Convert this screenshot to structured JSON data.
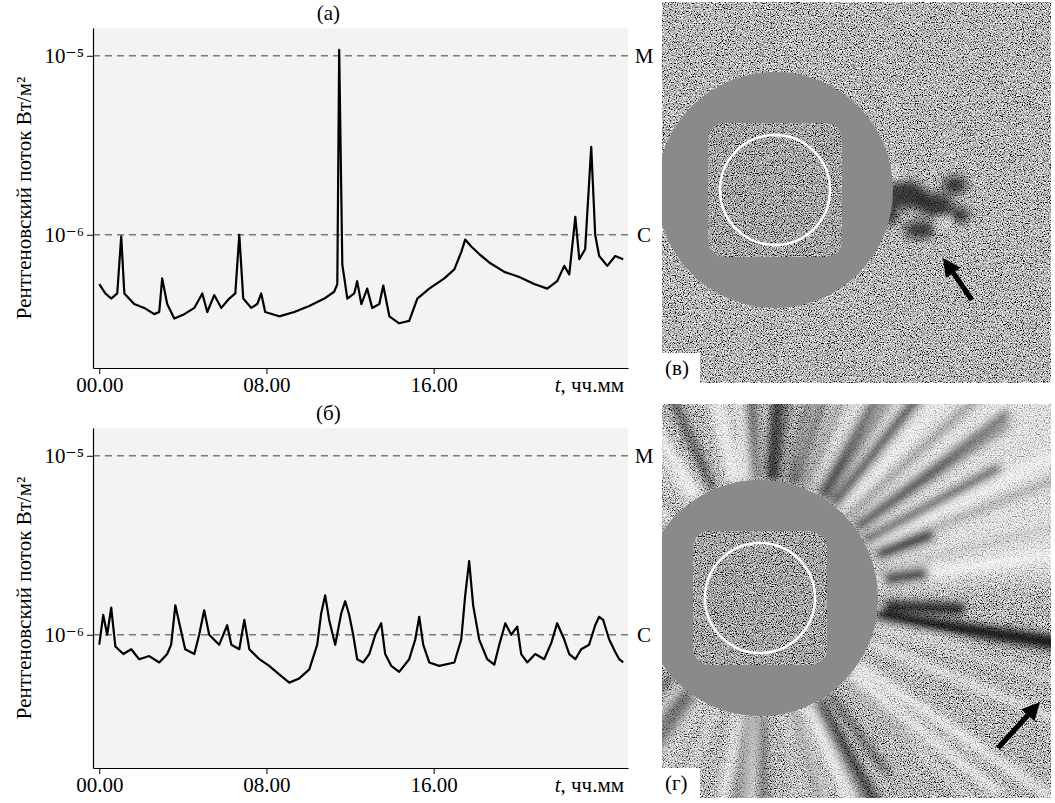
{
  "chart_data": [
    {
      "type": "line",
      "title": "(а)",
      "x_label": "t, чч.мм",
      "y_label": "Рентгеновский поток Вт/м²",
      "color": "#000000",
      "log": "y",
      "xlim": [
        -0.3,
        25.3
      ],
      "xticks": [
        {
          "value": 0,
          "label": "00.00"
        },
        {
          "value": 8,
          "label": "08.00"
        },
        {
          "value": 16,
          "label": "16.00"
        }
      ],
      "ylim": [
        1.8e-07,
        1.43e-05
      ],
      "yticks": [
        {
          "value": 1e-05,
          "label": "10⁻⁵"
        },
        {
          "value": 1e-06,
          "label": "10⁻⁶"
        }
      ],
      "annotations": [
        {
          "text": "M",
          "y": 1e-05,
          "line_style": "dashed"
        },
        {
          "text": "C",
          "y": 1e-06,
          "line_style": "dashed"
        }
      ],
      "x": [
        0.0,
        0.29,
        0.57,
        0.86,
        1.05,
        1.2,
        1.67,
        2.15,
        2.63,
        2.87,
        3.01,
        3.25,
        3.59,
        4.07,
        4.55,
        4.93,
        5.17,
        5.5,
        5.84,
        6.22,
        6.51,
        6.7,
        6.89,
        7.27,
        7.56,
        7.75,
        7.94,
        8.61,
        9.33,
        10.05,
        10.77,
        11.24,
        11.39,
        11.48,
        11.63,
        11.87,
        12.2,
        12.34,
        12.54,
        12.82,
        13.06,
        13.4,
        13.59,
        13.88,
        14.35,
        14.83,
        15.22,
        15.79,
        16.51,
        16.99,
        17.32,
        17.51,
        17.8,
        18.18,
        18.66,
        19.38,
        20.1,
        20.81,
        21.44,
        21.91,
        22.25,
        22.49,
        22.78,
        22.97,
        23.25,
        23.54,
        23.73,
        23.92,
        24.31,
        24.69,
        25.07
      ],
      "values": [
        5.3e-07,
        4.7e-07,
        4.4e-07,
        4.7e-07,
        9.8e-07,
        4.7e-07,
        4.1e-07,
        3.9e-07,
        3.6e-07,
        3.7e-07,
        5.7e-07,
        4.1e-07,
        3.4e-07,
        3.6e-07,
        3.9e-07,
        4.7e-07,
        3.7e-07,
        4.6e-07,
        3.9e-07,
        4.4e-07,
        4.7e-07,
        1e-06,
        4.4e-07,
        3.9e-07,
        4.1e-07,
        4.7e-07,
        3.7e-07,
        3.5e-07,
        3.7e-07,
        4e-07,
        4.4e-07,
        4.8e-07,
        5.3e-07,
        1.08e-05,
        6.8e-07,
        4.4e-07,
        4.7e-07,
        5.5e-07,
        4.1e-07,
        5e-07,
        3.9e-07,
        4.1e-07,
        5.2e-07,
        3.5e-07,
        3.2e-07,
        3.3e-07,
        4.4e-07,
        5e-07,
        5.7e-07,
        6.4e-07,
        8e-07,
        9.4e-07,
        8.6e-07,
        7.8e-07,
        7e-07,
        6.2e-07,
        5.8e-07,
        5.3e-07,
        5e-07,
        5.5e-07,
        6.7e-07,
        6e-07,
        1.26e-06,
        7.3e-07,
        8.3e-07,
        3.1e-06,
        1e-06,
        7.6e-07,
        6.7e-07,
        7.6e-07,
        7.3e-07
      ]
    },
    {
      "type": "line",
      "title": "(б)",
      "x_label": "t, чч.мм",
      "y_label": "Рентгеновский поток Вт/м²",
      "color": "#000000",
      "log": "y",
      "xlim": [
        -0.3,
        25.3
      ],
      "xticks": [
        {
          "value": 0,
          "label": "00.00"
        },
        {
          "value": 8,
          "label": "08.00"
        },
        {
          "value": 16,
          "label": "16.00"
        }
      ],
      "ylim": [
        1.8e-07,
        1.43e-05
      ],
      "yticks": [
        {
          "value": 1e-05,
          "label": "10⁻⁵"
        },
        {
          "value": 1e-06,
          "label": "10⁻⁶"
        }
      ],
      "annotations": [
        {
          "text": "M",
          "y": 1e-05,
          "line_style": "dashed"
        },
        {
          "text": "C",
          "y": 1e-06,
          "line_style": "dashed"
        }
      ],
      "x": [
        0.0,
        0.19,
        0.38,
        0.57,
        0.77,
        1.15,
        1.53,
        1.91,
        2.39,
        2.87,
        3.25,
        3.44,
        3.64,
        3.83,
        4.11,
        4.55,
        4.78,
        5.02,
        5.26,
        5.74,
        6.12,
        6.32,
        6.7,
        6.94,
        7.18,
        7.66,
        8.13,
        8.61,
        9.09,
        9.57,
        10.05,
        10.43,
        10.62,
        10.81,
        11.0,
        11.29,
        11.58,
        11.77,
        11.96,
        12.15,
        12.34,
        12.63,
        12.92,
        13.21,
        13.49,
        13.68,
        13.97,
        14.35,
        14.83,
        15.12,
        15.31,
        15.5,
        15.79,
        16.27,
        16.99,
        17.32,
        17.51,
        17.7,
        17.89,
        18.18,
        18.56,
        18.9,
        19.14,
        19.43,
        19.71,
        20.0,
        20.19,
        20.48,
        20.86,
        21.29,
        21.63,
        21.91,
        22.25,
        22.49,
        22.78,
        23.06,
        23.44,
        23.73,
        23.92,
        24.11,
        24.4,
        24.69,
        24.88,
        25.07
      ],
      "values": [
        8.8e-07,
        1.29e-06,
        1e-06,
        1.42e-06,
        8.6e-07,
        7.8e-07,
        8.3e-07,
        7.3e-07,
        7.6e-07,
        7e-07,
        7.8e-07,
        8.8e-07,
        1.46e-06,
        1.16e-06,
        8.3e-07,
        7.8e-07,
        1e-06,
        1.37e-06,
        1e-06,
        8.8e-07,
        1.13e-06,
        8.8e-07,
        8.3e-07,
        1.21e-06,
        8.3e-07,
        7.3e-07,
        6.7e-07,
        6e-07,
        5.4e-07,
        5.7e-07,
        6.4e-07,
        8.8e-07,
        1.32e-06,
        1.66e-06,
        1.21e-06,
        8.8e-07,
        1.32e-06,
        1.54e-06,
        1.29e-06,
        1e-06,
        7.3e-07,
        7e-07,
        7.8e-07,
        1e-06,
        1.16e-06,
        7.8e-07,
        6.7e-07,
        6.2e-07,
        7.3e-07,
        9.4e-07,
        1.26e-06,
        8.8e-07,
        7e-07,
        6.7e-07,
        7e-07,
        9.4e-07,
        1.66e-06,
        2.58e-06,
        1.46e-06,
        9.4e-07,
        7.3e-07,
        6.8e-07,
        8.8e-07,
        1.16e-06,
        1e-06,
        1.11e-06,
        7.8e-07,
        7e-07,
        7.8e-07,
        7.3e-07,
        9e-07,
        1.16e-06,
        9.4e-07,
        7.8e-07,
        7.3e-07,
        8.3e-07,
        8.8e-07,
        1.13e-06,
        1.26e-06,
        1.21e-06,
        9.4e-07,
        8e-07,
        7.3e-07,
        7e-07
      ]
    }
  ],
  "images": [
    {
      "label": "(в)"
    },
    {
      "label": "(г)"
    }
  ]
}
